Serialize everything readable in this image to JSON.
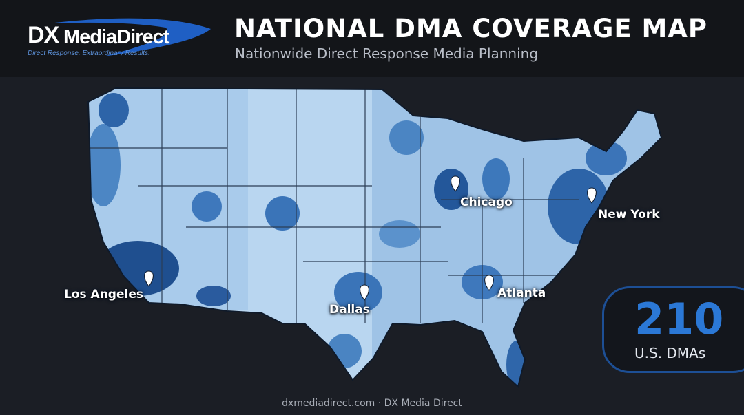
{
  "header": {
    "logo": {
      "mark": "DX",
      "name": "MediaDirect",
      "tagline": "Direct Response. Extraordinary Results."
    },
    "title": "NATIONAL DMA COVERAGE MAP",
    "subtitle": "Nationwide Direct Response Media Planning"
  },
  "cities": [
    "Los Angeles",
    "Dallas",
    "Chicago",
    "Atlanta",
    "New York"
  ],
  "stat": {
    "value": "210",
    "label": "U.S. DMAs"
  },
  "footer": "dxmediadirect.com · DX Media Direct"
}
